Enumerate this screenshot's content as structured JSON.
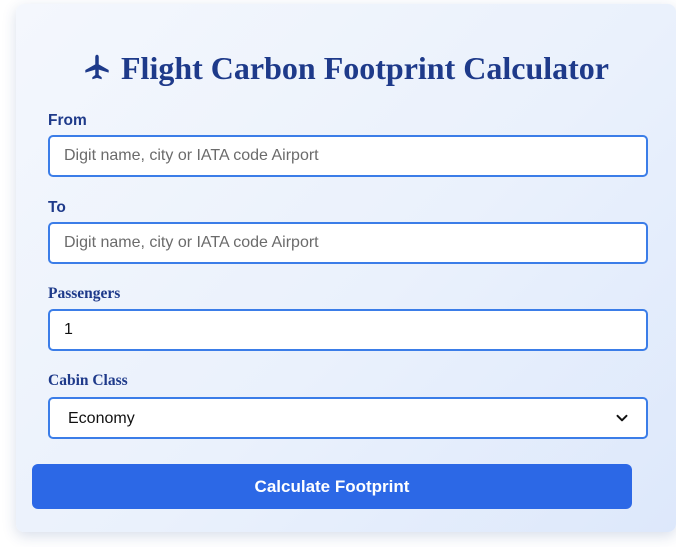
{
  "header": {
    "title": "Flight Carbon Footprint Calculator",
    "icon": "airplane-icon"
  },
  "form": {
    "from": {
      "label": "From",
      "placeholder": "Digit name, city or IATA code Airport",
      "value": ""
    },
    "to": {
      "label": "To",
      "placeholder": "Digit name, city or IATA code Airport",
      "value": ""
    },
    "passengers": {
      "label": "Passengers",
      "value": "1"
    },
    "cabin_class": {
      "label": "Cabin Class",
      "selected": "Economy"
    },
    "submit_label": "Calculate Footprint"
  },
  "colors": {
    "accent": "#2c68e6",
    "heading": "#1e3a8a",
    "field_border": "#3b7de8"
  }
}
